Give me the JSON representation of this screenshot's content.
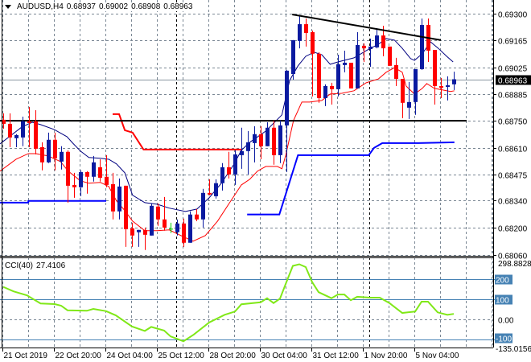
{
  "header": {
    "symbol": "AUDUSD,H4",
    "open": "0.68937",
    "high": "0.69002",
    "low": "0.68908",
    "close": "0.68963"
  },
  "cci_header": {
    "name": "CCI(40)",
    "value": "27.4106"
  },
  "colors": {
    "bull": "#0a1aa0",
    "bear": "#ff0000",
    "doji": "#00d000",
    "ma_blue": "#000080",
    "ma_red": "#ff0000",
    "step_red": "#ff0000",
    "step_blue": "#0000ff",
    "cci": "#80e818",
    "cci_level": "#4682b4",
    "grid": "#7a8794",
    "trend": "#000000"
  },
  "chart_data": [
    {
      "type": "candlestick",
      "title": "AUDUSD,H4",
      "ylim": [
        0.6806,
        0.693
      ],
      "price_ticks": [
        "0.69300",
        "0.69165",
        "0.69025",
        "0.68885",
        "0.68750",
        "0.68610",
        "0.68475",
        "0.68340",
        "0.68200",
        "0.68060"
      ],
      "current_price": "0.68963",
      "time_ticks": [
        {
          "bar": 0,
          "label": "21 Oct 2019"
        },
        {
          "bar": 8,
          "label": "22 Oct 20:00"
        },
        {
          "bar": 16,
          "label": "24 Oct 04:00"
        },
        {
          "bar": 24,
          "label": "25 Oct 12:00"
        },
        {
          "bar": 32,
          "label": "28 Oct 20:00"
        },
        {
          "bar": 40,
          "label": "30 Oct 04:00"
        },
        {
          "bar": 48,
          "label": "31 Oct 12:00"
        },
        {
          "bar": 56,
          "label": "1 Nov 20:00"
        },
        {
          "bar": 64,
          "label": "5 Nov 04:00"
        }
      ],
      "period_separators": [
        27,
        57
      ],
      "grid": true,
      "ohlc": [
        [
          0.68755,
          0.68788,
          0.68709,
          0.68734
        ],
        [
          0.68734,
          0.68788,
          0.68614,
          0.68664
        ],
        [
          0.6866,
          0.68681,
          0.68614,
          0.68676
        ],
        [
          0.68664,
          0.68771,
          0.68619,
          0.68747
        ],
        [
          0.68747,
          0.68821,
          0.68614,
          0.68738
        ],
        [
          0.68747,
          0.68804,
          0.68577,
          0.68606
        ],
        [
          0.68614,
          0.68639,
          0.68495,
          0.68536
        ],
        [
          0.68536,
          0.68689,
          0.68532,
          0.68652
        ],
        [
          0.68652,
          0.68689,
          0.68495,
          0.68557
        ],
        [
          0.6854,
          0.68619,
          0.68499,
          0.6859
        ],
        [
          0.6859,
          0.68598,
          0.68329,
          0.68416
        ],
        [
          0.6842,
          0.68482,
          0.68354,
          0.68408
        ],
        [
          0.68408,
          0.68495,
          0.68362,
          0.68486
        ],
        [
          0.68486,
          0.68491,
          0.68375,
          0.68462
        ],
        [
          0.68462,
          0.68569,
          0.68437,
          0.68536
        ],
        [
          0.68511,
          0.68552,
          0.68437,
          0.68457
        ],
        [
          0.68462,
          0.68573,
          0.68408,
          0.6842
        ],
        [
          0.68424,
          0.68482,
          0.68243,
          0.68284
        ],
        [
          0.68284,
          0.68453,
          0.68243,
          0.68412
        ],
        [
          0.68416,
          0.68416,
          0.68102,
          0.68193
        ],
        [
          0.68197,
          0.68226,
          0.68102,
          0.6816
        ],
        [
          0.68177,
          0.68189,
          0.68102,
          0.68189
        ],
        [
          0.68189,
          0.68201,
          0.68086,
          0.68164
        ],
        [
          0.6816,
          0.68325,
          0.6816,
          0.68313
        ],
        [
          0.68309,
          0.68325,
          0.6821,
          0.68243
        ],
        [
          0.68243,
          0.68358,
          0.68185,
          0.68201
        ],
        [
          0.68193,
          0.68226,
          0.68173,
          0.68193
        ],
        [
          0.68177,
          0.68243,
          0.6816,
          0.68222
        ],
        [
          0.68222,
          0.68247,
          0.68102,
          0.68123
        ],
        [
          0.68123,
          0.68284,
          0.68123,
          0.68268
        ],
        [
          0.68268,
          0.68296,
          0.68234,
          0.68243
        ],
        [
          0.68243,
          0.684,
          0.68201,
          0.68379
        ],
        [
          0.68379,
          0.68449,
          0.68367,
          0.68371
        ],
        [
          0.68362,
          0.68449,
          0.6835,
          0.68429
        ],
        [
          0.68429,
          0.68532,
          0.68391,
          0.68511
        ],
        [
          0.68511,
          0.6859,
          0.68453,
          0.68474
        ],
        [
          0.68474,
          0.68598,
          0.6842,
          0.68577
        ],
        [
          0.68573,
          0.68714,
          0.68503,
          0.68594
        ],
        [
          0.68594,
          0.68697,
          0.68474,
          0.68639
        ],
        [
          0.68635,
          0.68722,
          0.68536,
          0.68681
        ],
        [
          0.68681,
          0.68722,
          0.68552,
          0.68619
        ],
        [
          0.68619,
          0.68742,
          0.68619,
          0.68714
        ],
        [
          0.68714,
          0.68751,
          0.68524,
          0.68573
        ],
        [
          0.68573,
          0.68751,
          0.68532,
          0.68726
        ],
        [
          0.68726,
          0.69011,
          0.68486,
          0.69007
        ],
        [
          0.6899,
          0.69164,
          0.68961,
          0.69164
        ],
        [
          0.6916,
          0.69288,
          0.69122,
          0.69246
        ],
        [
          0.69246,
          0.69275,
          0.69131,
          0.69201
        ],
        [
          0.69205,
          0.69213,
          0.68875,
          0.69094
        ],
        [
          0.69094,
          0.69102,
          0.68842,
          0.68866
        ],
        [
          0.68866,
          0.68937,
          0.68825,
          0.68928
        ],
        [
          0.68928,
          0.68945,
          0.68833,
          0.68912
        ],
        [
          0.68912,
          0.69089,
          0.68875,
          0.6904
        ],
        [
          0.69036,
          0.6911,
          0.68999,
          0.69048
        ],
        [
          0.69048,
          0.69048,
          0.68916,
          0.68916
        ],
        [
          0.68916,
          0.69205,
          0.68916,
          0.69139
        ],
        [
          0.69135,
          0.69147,
          0.69052,
          0.69122
        ],
        [
          0.69118,
          0.69172,
          0.69027,
          0.69131
        ],
        [
          0.69127,
          0.69226,
          0.69122,
          0.69188
        ],
        [
          0.69188,
          0.69238,
          0.69081,
          0.69122
        ],
        [
          0.69131,
          0.69131,
          0.69032,
          0.69032
        ],
        [
          0.69036,
          0.69073,
          0.68928,
          0.68965
        ],
        [
          0.68965,
          0.68965,
          0.68763,
          0.68842
        ],
        [
          0.68817,
          0.68949,
          0.68759,
          0.68846
        ],
        [
          0.68846,
          0.69015,
          0.6878,
          0.69015
        ],
        [
          0.69015,
          0.69275,
          0.69011,
          0.69242
        ],
        [
          0.69242,
          0.69275,
          0.69052,
          0.6911
        ],
        [
          0.69114,
          0.69114,
          0.68833,
          0.68928
        ],
        [
          0.68928,
          0.6897,
          0.68866,
          0.68924
        ],
        [
          0.68924,
          0.68978,
          0.68854,
          0.68932
        ],
        [
          0.68937,
          0.69002,
          0.68908,
          0.68963
        ]
      ],
      "lines": {
        "ma_blue": [
          [
            -0.5,
            0.68631
          ],
          [
            2.9,
            0.68718
          ],
          [
            4.5,
            0.68742
          ],
          [
            5.8,
            0.6873
          ],
          [
            7.9,
            0.68705
          ],
          [
            9.9,
            0.68668
          ],
          [
            10.8,
            0.68635
          ],
          [
            12,
            0.68594
          ],
          [
            13.3,
            0.68561
          ],
          [
            15.1,
            0.68557
          ],
          [
            16.4,
            0.68552
          ],
          [
            17.6,
            0.68528
          ],
          [
            18.9,
            0.68482
          ],
          [
            20.1,
            0.68367
          ],
          [
            22,
            0.68329
          ],
          [
            23.9,
            0.68321
          ],
          [
            25.8,
            0.68301
          ],
          [
            28.3,
            0.68284
          ],
          [
            30.1,
            0.68296
          ],
          [
            32,
            0.68354
          ],
          [
            33.9,
            0.68429
          ],
          [
            35.8,
            0.68524
          ],
          [
            37,
            0.68598
          ],
          [
            38.3,
            0.68639
          ],
          [
            40.8,
            0.68697
          ],
          [
            43.3,
            0.6878
          ],
          [
            44.5,
            0.68957
          ],
          [
            45.8,
            0.69032
          ],
          [
            47,
            0.69081
          ],
          [
            48.3,
            0.69102
          ],
          [
            49.5,
            0.69089
          ],
          [
            50.8,
            0.6904
          ],
          [
            52,
            0.69052
          ],
          [
            54.5,
            0.69073
          ],
          [
            56.4,
            0.6911
          ],
          [
            58.3,
            0.69143
          ],
          [
            59.5,
            0.69172
          ],
          [
            60.8,
            0.69164
          ],
          [
            62,
            0.69122
          ],
          [
            63.3,
            0.69069
          ],
          [
            63.9,
            0.6906
          ],
          [
            65.1,
            0.69094
          ],
          [
            66.4,
            0.69155
          ],
          [
            67.6,
            0.69122
          ],
          [
            68.9,
            0.69081
          ],
          [
            69.9,
            0.69052
          ]
        ],
        "ma_red": [
          [
            -0.5,
            0.68491
          ],
          [
            2,
            0.68552
          ],
          [
            3.9,
            0.68581
          ],
          [
            5.1,
            0.68581
          ],
          [
            7,
            0.68569
          ],
          [
            8.9,
            0.6854
          ],
          [
            10.1,
            0.68491
          ],
          [
            12,
            0.68441
          ],
          [
            13.3,
            0.68429
          ],
          [
            15.1,
            0.68433
          ],
          [
            16.4,
            0.68412
          ],
          [
            17.6,
            0.68338
          ],
          [
            18.9,
            0.68288
          ],
          [
            20.1,
            0.68234
          ],
          [
            22,
            0.68185
          ],
          [
            23.9,
            0.68185
          ],
          [
            25.8,
            0.68189
          ],
          [
            27.6,
            0.6816
          ],
          [
            29.5,
            0.68131
          ],
          [
            31.4,
            0.6816
          ],
          [
            33.3,
            0.68234
          ],
          [
            35.1,
            0.68325
          ],
          [
            37,
            0.6842
          ],
          [
            38.3,
            0.68449
          ],
          [
            39.5,
            0.68491
          ],
          [
            40.8,
            0.68515
          ],
          [
            42.6,
            0.68515
          ],
          [
            43.3,
            0.68503
          ],
          [
            43.9,
            0.68573
          ],
          [
            45.1,
            0.68751
          ],
          [
            46.4,
            0.68846
          ],
          [
            47.6,
            0.68846
          ],
          [
            49.5,
            0.68854
          ],
          [
            50.8,
            0.68887
          ],
          [
            52.6,
            0.68891
          ],
          [
            54.5,
            0.68904
          ],
          [
            56.4,
            0.68945
          ],
          [
            58.3,
            0.68965
          ],
          [
            59.5,
            0.68999
          ],
          [
            60.8,
            0.69023
          ],
          [
            62,
            0.68999
          ],
          [
            62.6,
            0.68928
          ],
          [
            63.9,
            0.68887
          ],
          [
            65.1,
            0.68916
          ],
          [
            65.8,
            0.68941
          ],
          [
            67,
            0.68916
          ],
          [
            68.3,
            0.68908
          ],
          [
            69.5,
            0.689
          ],
          [
            70.1,
            0.68904
          ]
        ],
        "step_red": [
          [
            17,
            0.68784
          ],
          [
            18,
            0.68784
          ],
          [
            18.9,
            0.68701
          ],
          [
            20.1,
            0.68689
          ],
          [
            21.8,
            0.68602
          ],
          [
            37,
            0.68602
          ]
        ],
        "step_blue_1": [
          [
            -0.5,
            0.68329
          ],
          [
            3.9,
            0.68329
          ],
          [
            3.9,
            0.68338
          ],
          [
            16,
            0.68338
          ]
        ],
        "step_blue_2": [
          [
            37.9,
            0.68268
          ],
          [
            42.9,
            0.68268
          ],
          [
            45.8,
            0.68573
          ],
          [
            56.8,
            0.68573
          ],
          [
            57.6,
            0.6861
          ],
          [
            58.9,
            0.68635
          ],
          [
            64.5,
            0.68635
          ],
          [
            70.1,
            0.68639
          ]
        ],
        "support": [
          [
            -0.5,
            0.6875
          ],
          [
            72,
            0.6875
          ]
        ],
        "trendline": [
          [
            44.9,
            0.69296
          ],
          [
            68,
            0.69164
          ]
        ]
      }
    },
    {
      "type": "line",
      "title": "CCI(40) 27.4106",
      "ylim": [
        -135.0156,
        298.8828
      ],
      "range_labels": [
        "298.8828",
        "-135.0156"
      ],
      "levels": [
        {
          "value": 200,
          "label": "200"
        },
        {
          "value": 100,
          "label": "100"
        },
        {
          "value": 0,
          "label": "0.00"
        },
        {
          "value": -100,
          "label": "-100"
        }
      ],
      "points": [
        [
          0,
          161
        ],
        [
          1.6,
          139
        ],
        [
          3.7,
          119
        ],
        [
          5.8,
          79
        ],
        [
          8,
          76
        ],
        [
          9,
          68
        ],
        [
          10,
          45
        ],
        [
          13,
          43
        ],
        [
          14,
          52
        ],
        [
          16,
          41
        ],
        [
          17.5,
          20
        ],
        [
          20,
          -35
        ],
        [
          22,
          -57
        ],
        [
          23,
          -37
        ],
        [
          25,
          -55
        ],
        [
          26,
          -84
        ],
        [
          28,
          -108
        ],
        [
          29.6,
          -75
        ],
        [
          32,
          -15
        ],
        [
          34.4,
          23
        ],
        [
          36,
          39
        ],
        [
          37,
          75
        ],
        [
          40,
          85
        ],
        [
          41,
          105
        ],
        [
          42,
          81
        ],
        [
          43,
          103
        ],
        [
          44,
          185
        ],
        [
          45,
          265
        ],
        [
          46,
          273
        ],
        [
          47,
          259
        ],
        [
          48,
          185
        ],
        [
          49,
          135
        ],
        [
          51,
          105
        ],
        [
          52,
          123
        ],
        [
          53,
          123
        ],
        [
          54,
          95
        ],
        [
          55,
          112
        ],
        [
          57,
          108
        ],
        [
          58.5,
          108
        ],
        [
          60,
          81
        ],
        [
          62,
          32
        ],
        [
          64,
          39
        ],
        [
          65,
          88
        ],
        [
          66,
          88
        ],
        [
          67.5,
          35
        ],
        [
          69,
          23
        ],
        [
          70,
          27.41
        ]
      ]
    }
  ]
}
